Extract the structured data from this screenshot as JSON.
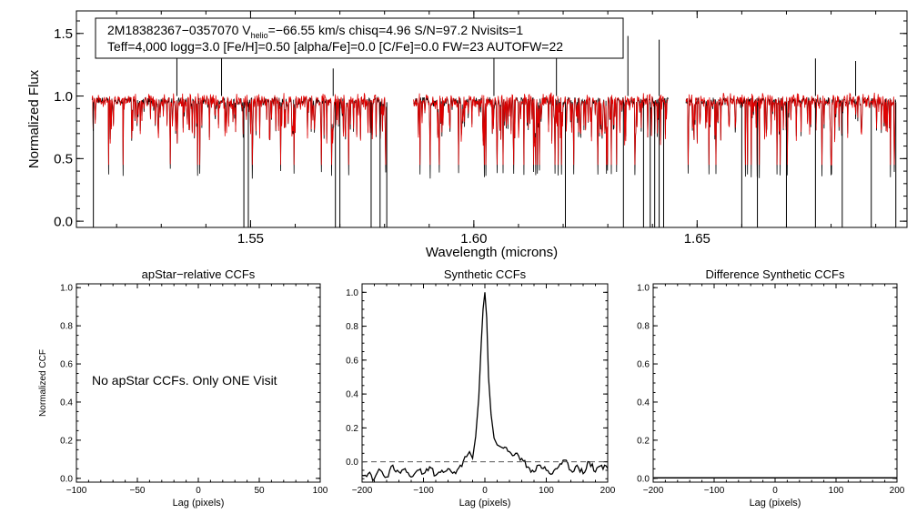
{
  "chart_data": [
    {
      "type": "line",
      "id": "spectrum",
      "xlabel": "Wavelength (microns)",
      "ylabel": "Normalized Flux",
      "xlim": [
        1.511,
        1.697
      ],
      "ylim": [
        -0.05,
        1.68
      ],
      "xticks": [
        1.55,
        1.6,
        1.65
      ],
      "xtick_labels": [
        "1.55",
        "1.60",
        "1.65"
      ],
      "yticks": [
        0.0,
        0.5,
        1.0,
        1.5
      ],
      "ytick_labels": [
        "0.0",
        "0.5",
        "1.0",
        "1.5"
      ],
      "chips": [
        [
          1.5145,
          1.5805
        ],
        [
          1.5865,
          1.6435
        ],
        [
          1.6475,
          1.6945
        ]
      ],
      "series": [
        {
          "name": "observed",
          "color": "#000000"
        },
        {
          "name": "synthetic",
          "color": "#e00000"
        }
      ],
      "emission_spikes": [
        [
          1.5335,
          1.42
        ],
        [
          1.5435,
          1.4
        ],
        [
          1.5685,
          1.22
        ],
        [
          1.6045,
          1.35
        ],
        [
          1.6185,
          1.3
        ],
        [
          1.6345,
          1.48
        ],
        [
          1.6415,
          1.45
        ],
        [
          1.6765,
          1.3
        ],
        [
          1.6855,
          1.28
        ]
      ],
      "absorption_lines": [
        1.5148,
        1.5485,
        1.5495,
        1.569,
        1.57,
        1.577,
        1.579,
        1.5805,
        1.6205,
        1.6335,
        1.638,
        1.6395,
        1.6405,
        1.6415,
        1.6425,
        1.66,
        1.6635,
        1.67,
        1.6765,
        1.6825,
        1.689,
        1.6945
      ],
      "annotation": {
        "line1_prefix": "2M18382367−0357070  V",
        "line1_sub": "helio",
        "line1_suffix": "=−66.55 km/s  chisq=4.96  S/N=97.2  Nvisits=1",
        "line2": "Teff=4,000 logg=3.0 [Fe/H]=0.50 [alpha/Fe]=0.0 [C/Fe]=0.0 FW=23 AUTOFW=22"
      }
    },
    {
      "type": "line",
      "id": "apstar",
      "title": "apStar−relative CCFs",
      "xlabel": "Lag (pixels)",
      "ylabel": "Normalized CCF",
      "xlim": [
        -100,
        100
      ],
      "ylim": [
        -0.02,
        1.02
      ],
      "xticks": [
        -100,
        -50,
        0,
        50,
        100
      ],
      "xtick_labels": [
        "−100",
        "−50",
        "0",
        "50",
        "100"
      ],
      "yticks": [
        0.0,
        0.2,
        0.4,
        0.6,
        0.8,
        1.0
      ],
      "ytick_labels": [
        "0.0",
        "0.2",
        "0.4",
        "0.6",
        "0.8",
        "1.0"
      ],
      "message": "No apStar CCFs.  Only ONE Visit"
    },
    {
      "type": "line",
      "id": "synthetic",
      "title": "Synthetic CCFs",
      "xlabel": "Lag (pixels)",
      "xlim": [
        -200,
        200
      ],
      "ylim": [
        -0.12,
        1.05
      ],
      "xticks": [
        -200,
        -100,
        0,
        100,
        200
      ],
      "xtick_labels": [
        "−200",
        "−100",
        "0",
        "100",
        "200"
      ],
      "yticks": [
        0.0,
        0.2,
        0.4,
        0.6,
        0.8,
        1.0
      ],
      "ytick_labels": [
        "0.0",
        "0.2",
        "0.4",
        "0.6",
        "0.8",
        "1.0"
      ],
      "series": [
        {
          "name": "ccf",
          "x": [
            -200,
            -190,
            -180,
            -170,
            -160,
            -150,
            -140,
            -130,
            -120,
            -110,
            -100,
            -90,
            -80,
            -70,
            -60,
            -50,
            -40,
            -30,
            -25,
            -20,
            -15,
            -10,
            -6,
            -3,
            0,
            3,
            6,
            10,
            15,
            20,
            25,
            30,
            40,
            50,
            60,
            70,
            80,
            90,
            100,
            110,
            120,
            130,
            140,
            150,
            160,
            170,
            180,
            190,
            200
          ],
          "y": [
            -0.08,
            -0.07,
            -0.1,
            -0.05,
            -0.09,
            -0.02,
            -0.06,
            -0.04,
            -0.09,
            -0.05,
            -0.07,
            -0.03,
            -0.08,
            -0.05,
            -0.04,
            -0.06,
            -0.02,
            0.03,
            0.06,
            0.02,
            0.15,
            0.38,
            0.7,
            0.9,
            1.0,
            0.85,
            0.5,
            0.28,
            0.14,
            0.1,
            0.09,
            0.08,
            0.06,
            0.05,
            0.02,
            -0.03,
            -0.06,
            -0.02,
            -0.05,
            -0.07,
            -0.03,
            0.01,
            -0.05,
            -0.02,
            -0.07,
            0.0,
            -0.06,
            -0.02,
            -0.04
          ]
        },
        {
          "name": "zero",
          "y_const": 0.0,
          "style": "dashed"
        }
      ]
    },
    {
      "type": "line",
      "id": "difference",
      "title": "Difference Synthetic CCFs",
      "xlabel": "Lag (pixels)",
      "xlim": [
        -200,
        200
      ],
      "ylim": [
        -0.02,
        1.02
      ],
      "xticks": [
        -200,
        -100,
        0,
        100,
        200
      ],
      "xtick_labels": [
        "−200",
        "−100",
        "0",
        "100",
        "200"
      ],
      "yticks": [
        0.0,
        0.2,
        0.4,
        0.6,
        0.8,
        1.0
      ],
      "ytick_labels": [
        "0.0",
        "0.2",
        "0.4",
        "0.6",
        "0.8",
        "1.0"
      ],
      "series": [
        {
          "name": "flat",
          "y_const": 0.0
        }
      ]
    }
  ]
}
